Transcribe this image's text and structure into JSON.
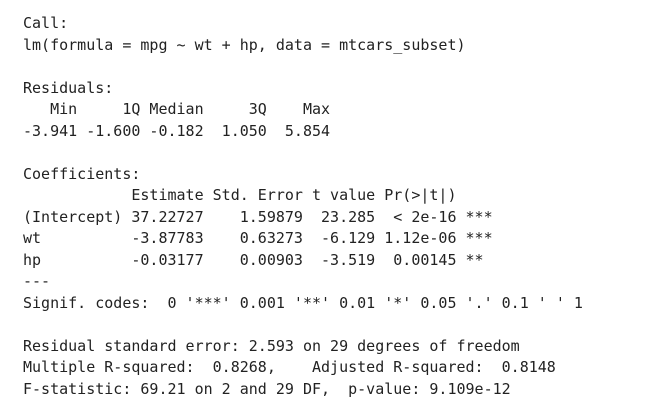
{
  "call": {
    "label": "Call:",
    "formula": "lm(formula = mpg ~ wt + hp, data = mtcars_subset)"
  },
  "residuals": {
    "label": "Residuals:",
    "header": "   Min     1Q Median     3Q    Max ",
    "values": "-3.941 -1.600 -0.182  1.050  5.854 "
  },
  "coefficients": {
    "label": "Coefficients:",
    "header": "            Estimate Std. Error t value Pr(>|t|)    ",
    "rows": [
      {
        "text": "(Intercept) 37.22727    1.59879  23.285  < 2e-16 ***"
      },
      {
        "text": "wt          -3.87783    0.63273  -6.129 1.12e-06 ***"
      },
      {
        "text": "hp          -0.03177    0.00903  -3.519  0.00145 ** "
      }
    ],
    "separator": "---",
    "signif_codes": "Signif. codes:  0 '***' 0.001 '**' 0.01 '*' 0.05 '.' 0.1 ' ' 1"
  },
  "summary": {
    "residual_se": "Residual standard error: 2.593 on 29 degrees of freedom",
    "r_squared": "Multiple R-squared:  0.8268,    Adjusted R-squared:  0.8148 ",
    "f_statistic": "F-statistic: 69.21 on 2 and 29 DF,  p-value: 9.109e-12"
  }
}
